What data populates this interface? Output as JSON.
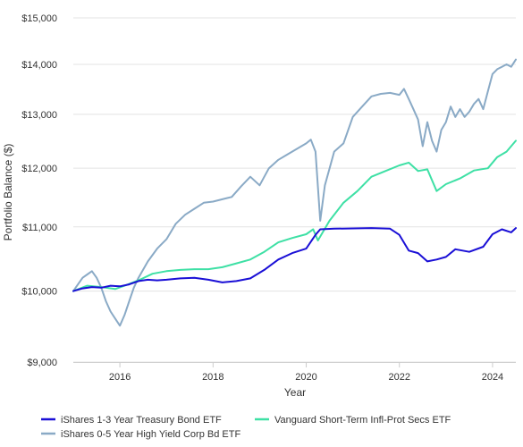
{
  "chart_data": {
    "type": "line",
    "title": "",
    "xlabel": "Year",
    "ylabel": "Portfolio Balance ($)",
    "y_scale": "log",
    "ylim": [
      9000,
      15000
    ],
    "xlim": [
      2015.0,
      2024.5
    ],
    "y_ticks": [
      {
        "value": 9000,
        "label": "$9,000"
      },
      {
        "value": 10000,
        "label": "$10,000"
      },
      {
        "value": 11000,
        "label": "$11,000"
      },
      {
        "value": 12000,
        "label": "$12,000"
      },
      {
        "value": 13000,
        "label": "$13,000"
      },
      {
        "value": 14000,
        "label": "$14,000"
      },
      {
        "value": 15000,
        "label": "$15,000"
      }
    ],
    "x_ticks": [
      {
        "value": 2016,
        "label": "2016"
      },
      {
        "value": 2018,
        "label": "2018"
      },
      {
        "value": 2020,
        "label": "2020"
      },
      {
        "value": 2022,
        "label": "2022"
      },
      {
        "value": 2024,
        "label": "2024"
      }
    ],
    "grid": {
      "horizontal": true,
      "vertical": false
    },
    "legend_position": "bottom",
    "series": [
      {
        "name": "iShares 1-3 Year Treasury Bond ETF",
        "color": "#1a0fd6",
        "x": [
          2015.0,
          2015.2,
          2015.4,
          2015.6,
          2015.8,
          2016.0,
          2016.2,
          2016.4,
          2016.6,
          2016.8,
          2017.0,
          2017.3,
          2017.6,
          2017.9,
          2018.2,
          2018.5,
          2018.8,
          2019.1,
          2019.4,
          2019.7,
          2020.0,
          2020.2,
          2020.3,
          2020.6,
          2021.0,
          2021.4,
          2021.8,
          2022.0,
          2022.2,
          2022.4,
          2022.6,
          2022.8,
          2023.0,
          2023.2,
          2023.5,
          2023.8,
          2024.0,
          2024.2,
          2024.4,
          2024.5
        ],
        "values": [
          10000,
          10040,
          10060,
          10050,
          10080,
          10070,
          10100,
          10150,
          10170,
          10160,
          10170,
          10190,
          10200,
          10170,
          10130,
          10150,
          10190,
          10320,
          10480,
          10580,
          10650,
          10870,
          10960,
          10970,
          10975,
          10980,
          10970,
          10870,
          10620,
          10580,
          10450,
          10480,
          10520,
          10640,
          10600,
          10680,
          10880,
          10960,
          10910,
          10980
        ]
      },
      {
        "name": "Vanguard Short-Term Infl-Prot Secs ETF",
        "color": "#3ee0a5",
        "x": [
          2015.0,
          2015.3,
          2015.6,
          2015.9,
          2016.1,
          2016.4,
          2016.7,
          2017.0,
          2017.3,
          2017.6,
          2017.9,
          2018.2,
          2018.5,
          2018.8,
          2019.1,
          2019.4,
          2019.7,
          2020.0,
          2020.15,
          2020.25,
          2020.5,
          2020.8,
          2021.1,
          2021.4,
          2021.7,
          2022.0,
          2022.2,
          2022.4,
          2022.6,
          2022.8,
          2023.0,
          2023.3,
          2023.6,
          2023.9,
          2024.1,
          2024.3,
          2024.5
        ],
        "values": [
          10000,
          10080,
          10060,
          10030,
          10080,
          10160,
          10260,
          10300,
          10320,
          10330,
          10330,
          10360,
          10420,
          10480,
          10600,
          10750,
          10820,
          10880,
          10960,
          10780,
          11100,
          11400,
          11600,
          11850,
          11950,
          12050,
          12100,
          11950,
          11980,
          11600,
          11720,
          11820,
          11960,
          12000,
          12200,
          12300,
          12500
        ]
      },
      {
        "name": "iShares 0-5 Year High Yield Corp Bd ETF",
        "color": "#8aaac6",
        "x": [
          2015.0,
          2015.1,
          2015.2,
          2015.3,
          2015.4,
          2015.5,
          2015.6,
          2015.7,
          2015.8,
          2015.9,
          2016.0,
          2016.1,
          2016.2,
          2016.3,
          2016.4,
          2016.6,
          2016.8,
          2017.0,
          2017.2,
          2017.4,
          2017.6,
          2017.8,
          2018.0,
          2018.2,
          2018.4,
          2018.6,
          2018.8,
          2019.0,
          2019.2,
          2019.4,
          2019.6,
          2019.8,
          2020.0,
          2020.1,
          2020.2,
          2020.3,
          2020.4,
          2020.6,
          2020.8,
          2021.0,
          2021.2,
          2021.4,
          2021.6,
          2021.8,
          2022.0,
          2022.1,
          2022.2,
          2022.3,
          2022.4,
          2022.5,
          2022.6,
          2022.7,
          2022.8,
          2022.9,
          2023.0,
          2023.1,
          2023.2,
          2023.3,
          2023.4,
          2023.5,
          2023.6,
          2023.7,
          2023.8,
          2023.9,
          2024.0,
          2024.1,
          2024.2,
          2024.3,
          2024.4,
          2024.5
        ],
        "values": [
          10000,
          10100,
          10200,
          10250,
          10300,
          10200,
          10050,
          9850,
          9700,
          9600,
          9500,
          9650,
          9850,
          10050,
          10200,
          10450,
          10650,
          10800,
          11050,
          11200,
          11300,
          11400,
          11420,
          11460,
          11500,
          11680,
          11850,
          11700,
          12000,
          12150,
          12250,
          12350,
          12450,
          12520,
          12300,
          11100,
          11700,
          12300,
          12450,
          12950,
          13150,
          13350,
          13400,
          13420,
          13380,
          13500,
          13300,
          13100,
          12900,
          12400,
          12850,
          12500,
          12300,
          12700,
          12850,
          13150,
          12950,
          13100,
          12950,
          13050,
          13200,
          13300,
          13100,
          13450,
          13800,
          13900,
          13950,
          14000,
          13950,
          14100
        ]
      }
    ]
  }
}
